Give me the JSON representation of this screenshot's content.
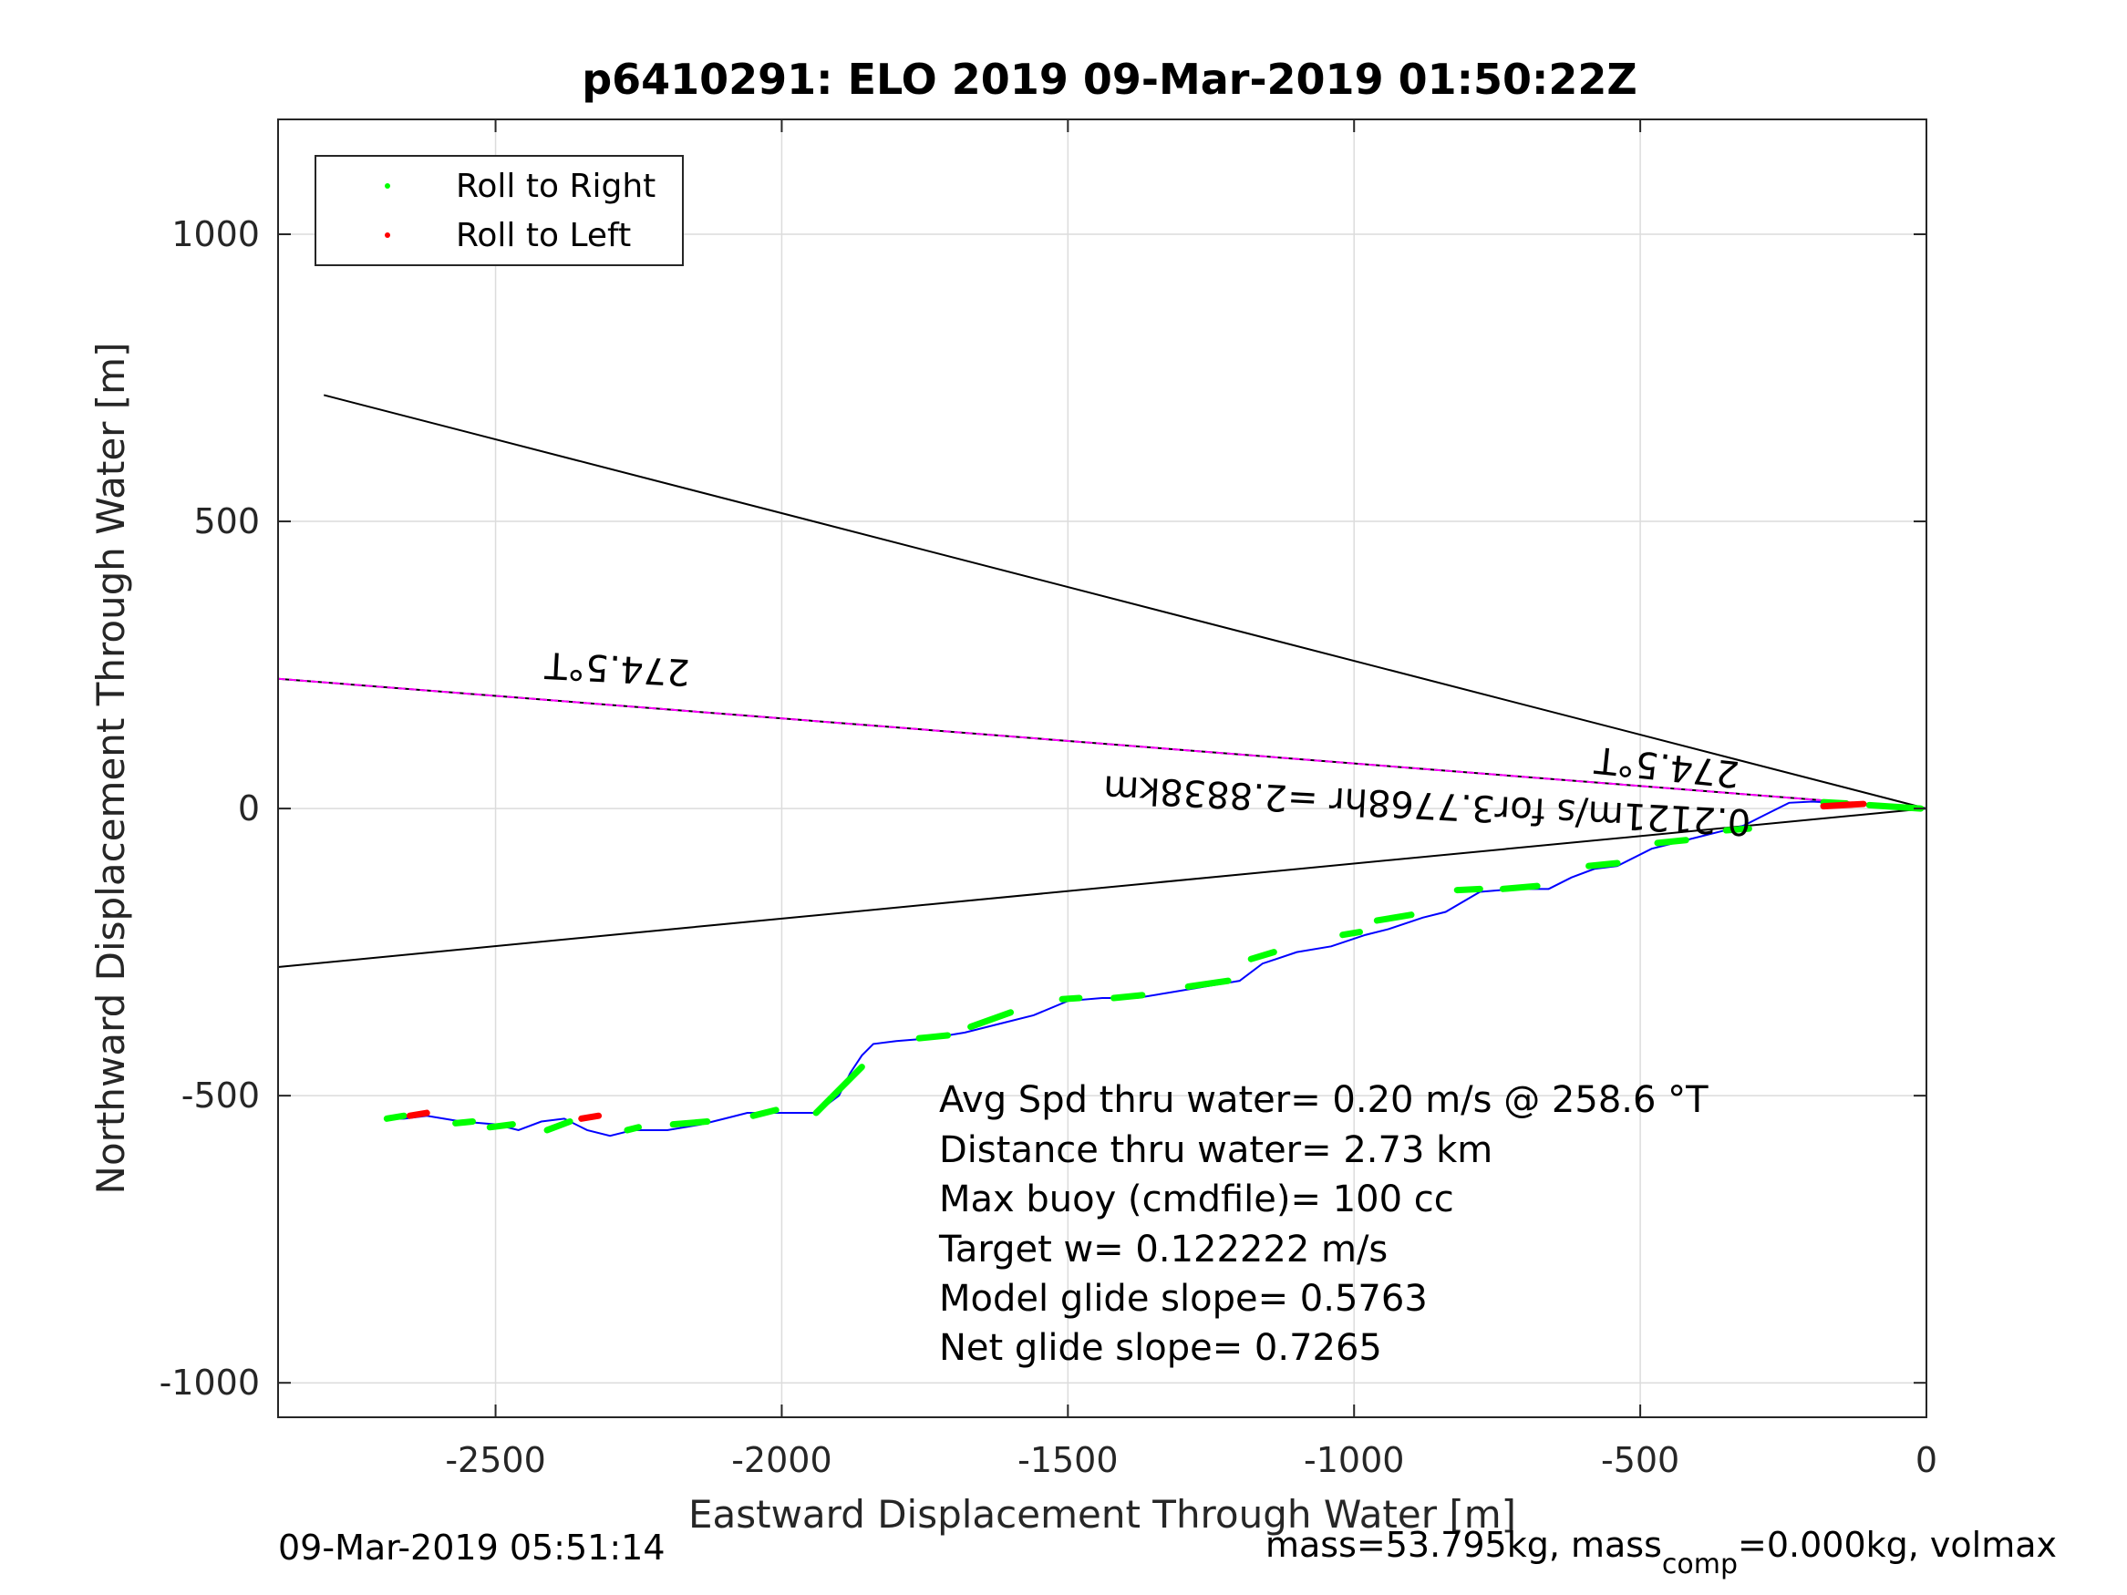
{
  "chart_data": {
    "type": "line",
    "title": "p6410291: ELO 2019 09-Mar-2019 01:50:22Z",
    "xlabel": "Eastward Displacement Through Water [m]",
    "ylabel": "Northward Displacement Through Water [m]",
    "xlim": [
      -2880,
      0
    ],
    "ylim": [
      -1060,
      1200
    ],
    "xticks": [
      -2500,
      -2000,
      -1500,
      -1000,
      -500,
      0
    ],
    "yticks": [
      -1000,
      -500,
      0,
      500,
      1000
    ],
    "xtick_labels": [
      "-2500",
      "-2000",
      "-1500",
      "-1000",
      "-500",
      "0"
    ],
    "ytick_labels": [
      "-1000",
      "-500",
      "0",
      "500",
      "1000"
    ],
    "grid": true,
    "legend_position": "top-left",
    "legend": [
      {
        "label": "Roll to Right",
        "color": "#00ff00"
      },
      {
        "label": "Roll to Left",
        "color": "#ff0000"
      }
    ],
    "track": {
      "color": "#0000ff",
      "x": [
        0,
        -40,
        -80,
        -120,
        -160,
        -200,
        -240,
        -280,
        -320,
        -360,
        -420,
        -480,
        -540,
        -580,
        -620,
        -660,
        -720,
        -780,
        -840,
        -880,
        -940,
        -980,
        -1040,
        -1100,
        -1160,
        -1200,
        -1260,
        -1320,
        -1380,
        -1440,
        -1500,
        -1560,
        -1620,
        -1680,
        -1740,
        -1800,
        -1840,
        -1860,
        -1880,
        -1900,
        -1940,
        -1980,
        -2020,
        -2060,
        -2100,
        -2140,
        -2200,
        -2260,
        -2300,
        -2340,
        -2380,
        -2420,
        -2460,
        -2500,
        -2560,
        -2620,
        -2660,
        -2680
      ],
      "y": [
        0,
        2,
        5,
        8,
        10,
        12,
        10,
        -10,
        -30,
        -40,
        -55,
        -70,
        -100,
        -105,
        -120,
        -140,
        -140,
        -145,
        -180,
        -190,
        -210,
        -220,
        -240,
        -250,
        -270,
        -300,
        -310,
        -320,
        -330,
        -330,
        -335,
        -360,
        -375,
        -390,
        -400,
        -405,
        -410,
        -430,
        -460,
        -500,
        -530,
        -530,
        -530,
        -530,
        -540,
        -550,
        -560,
        -560,
        -570,
        -560,
        -540,
        -545,
        -560,
        -550,
        -545,
        -535,
        -540,
        -540
      ]
    },
    "roll_right_segments": [
      {
        "x": [
          -10,
          -100
        ],
        "y": [
          0,
          6
        ]
      },
      {
        "x": [
          -140,
          -180
        ],
        "y": [
          9,
          11
        ]
      },
      {
        "x": [
          -310,
          -350
        ],
        "y": [
          -35,
          -38
        ]
      },
      {
        "x": [
          -420,
          -470
        ],
        "y": [
          -55,
          -60
        ]
      },
      {
        "x": [
          -540,
          -590
        ],
        "y": [
          -95,
          -100
        ]
      },
      {
        "x": [
          -680,
          -740
        ],
        "y": [
          -135,
          -140
        ]
      },
      {
        "x": [
          -780,
          -820
        ],
        "y": [
          -140,
          -142
        ]
      },
      {
        "x": [
          -900,
          -960
        ],
        "y": [
          -185,
          -195
        ]
      },
      {
        "x": [
          -990,
          -1020
        ],
        "y": [
          -215,
          -220
        ]
      },
      {
        "x": [
          -1140,
          -1180
        ],
        "y": [
          -250,
          -262
        ]
      },
      {
        "x": [
          -1220,
          -1290
        ],
        "y": [
          -300,
          -310
        ]
      },
      {
        "x": [
          -1370,
          -1420
        ],
        "y": [
          -325,
          -330
        ]
      },
      {
        "x": [
          -1480,
          -1510
        ],
        "y": [
          -330,
          -332
        ]
      },
      {
        "x": [
          -1600,
          -1670
        ],
        "y": [
          -355,
          -380
        ]
      },
      {
        "x": [
          -1710,
          -1760
        ],
        "y": [
          -395,
          -400
        ]
      },
      {
        "x": [
          -1860,
          -1940
        ],
        "y": [
          -450,
          -530
        ]
      },
      {
        "x": [
          -2010,
          -2050
        ],
        "y": [
          -525,
          -535
        ]
      },
      {
        "x": [
          -2130,
          -2190
        ],
        "y": [
          -545,
          -550
        ]
      },
      {
        "x": [
          -2250,
          -2270
        ],
        "y": [
          -555,
          -560
        ]
      },
      {
        "x": [
          -2370,
          -2410
        ],
        "y": [
          -545,
          -560
        ]
      },
      {
        "x": [
          -2470,
          -2510
        ],
        "y": [
          -550,
          -555
        ]
      },
      {
        "x": [
          -2540,
          -2570
        ],
        "y": [
          -545,
          -548
        ]
      },
      {
        "x": [
          -2660,
          -2690
        ],
        "y": [
          -535,
          -540
        ]
      }
    ],
    "roll_left_segments": [
      {
        "x": [
          -110,
          -180
        ],
        "y": [
          8,
          4
        ]
      },
      {
        "x": [
          -2320,
          -2350
        ],
        "y": [
          -535,
          -540
        ]
      },
      {
        "x": [
          -2620,
          -2650
        ],
        "y": [
          -530,
          -535
        ]
      }
    ],
    "reference_lines": [
      {
        "name": "upper",
        "color": "#000000",
        "x": [
          -2800,
          0
        ],
        "y": [
          720,
          0
        ]
      },
      {
        "name": "center",
        "color": "#000000",
        "x": [
          -2880,
          0
        ],
        "y": [
          226,
          0
        ]
      },
      {
        "name": "lower",
        "color": "#000000",
        "x": [
          -2880,
          0
        ],
        "y": [
          -276,
          0
        ]
      },
      {
        "name": "current",
        "color": "#ff00ff",
        "x": [
          -2880,
          0
        ],
        "y": [
          226,
          0
        ]
      }
    ],
    "annotations": {
      "heading_far": "274.5°T",
      "heading_near": "274.5°T",
      "current_label": "0.2121m/s for3.7768hr =2.8838km",
      "stats": [
        "Avg Spd thru water=  0.20 m/s @ 258.6 °T",
        "Distance thru water=  2.73 km",
        "Max buoy (cmdfile)= 100 cc",
        "Target w= 0.122222 m/s",
        "Model glide slope= 0.5763",
        "Net glide slope= 0.7265"
      ]
    }
  },
  "footer": {
    "timestamp": "09-Mar-2019 05:51:14",
    "mass_prefix": "mass=53.795kg, mass",
    "mass_sub": "comp",
    "mass_suffix": "=0.000kg, volmax"
  }
}
